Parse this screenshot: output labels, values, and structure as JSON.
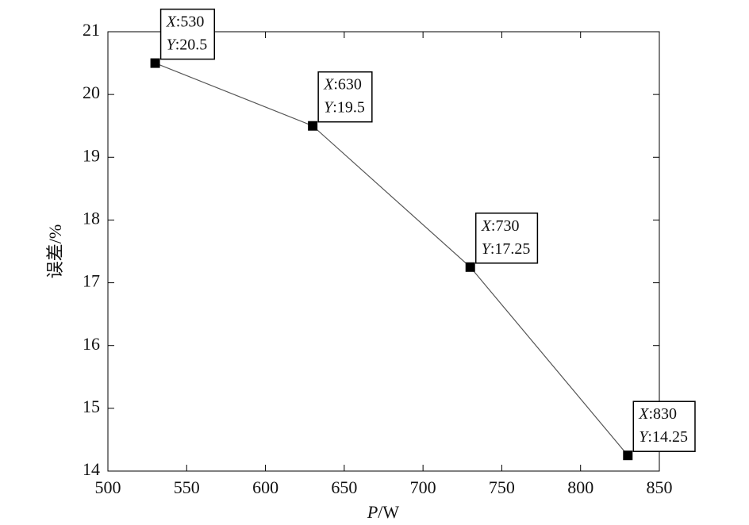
{
  "chart_data": {
    "type": "line",
    "x_label": "P/W",
    "y_label": "误差/%",
    "x": [
      530,
      630,
      730,
      830
    ],
    "values": [
      20.5,
      19.5,
      17.25,
      14.25
    ],
    "value_labels": [
      {
        "x": "X:530",
        "y": "Y:20.5"
      },
      {
        "x": "X:630",
        "y": "Y:19.5"
      },
      {
        "x": "X:730",
        "y": "Y:17.25"
      },
      {
        "x": "X:830",
        "y": "Y:14.25"
      }
    ],
    "color": "#555555",
    "marker_color": "#000000",
    "xlim": [
      500,
      850
    ],
    "xticks": [
      500,
      550,
      600,
      650,
      700,
      750,
      800,
      850
    ],
    "ylim": [
      14,
      21
    ],
    "yticks": [
      14,
      15,
      16,
      17,
      18,
      19,
      20,
      21
    ],
    "grid": false
  }
}
